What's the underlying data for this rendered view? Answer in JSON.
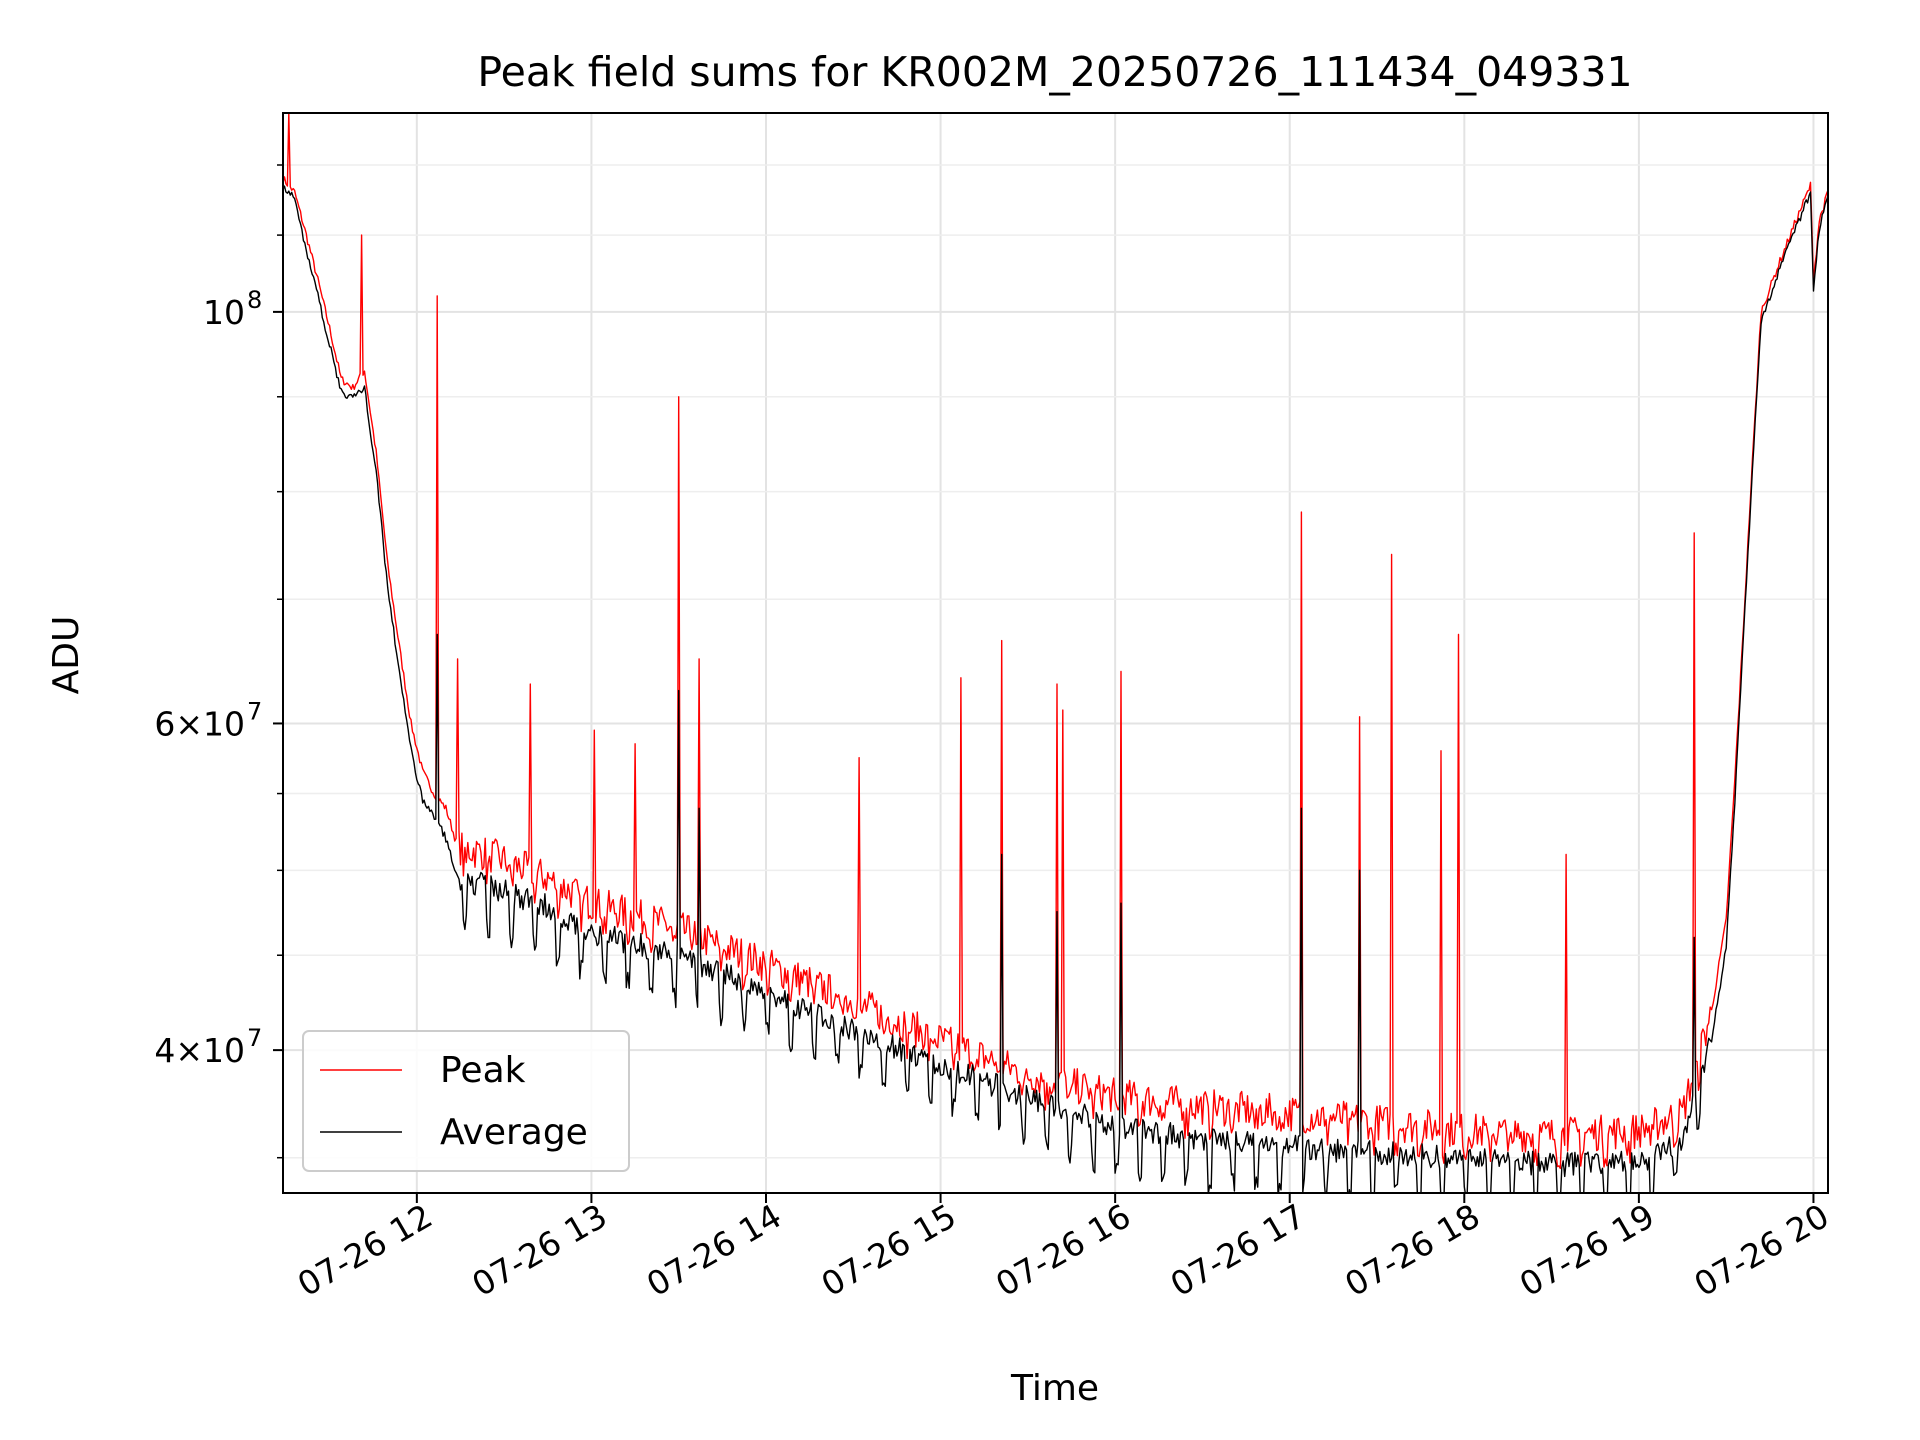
{
  "chart_data": {
    "type": "line",
    "title": "Peak field sums for KR002M_20250726_111434_049331",
    "xlabel": "Time",
    "ylabel": "ADU",
    "yscale": "log",
    "xlim": [
      "2025-07-26 11:14",
      "2025-07-26 20:05"
    ],
    "ylim": [
      33500000,
      128000000
    ],
    "x_ticks": [
      "07-26 12",
      "07-26 13",
      "07-26 14",
      "07-26 15",
      "07-26 16",
      "07-26 17",
      "07-26 18",
      "07-26 19",
      "07-26 20"
    ],
    "y_major_ticks": [
      {
        "value": 100000000,
        "mantissa": "",
        "base": "10",
        "exponent": "8"
      },
      {
        "value": 60000000,
        "mantissa": "6×",
        "base": "10",
        "exponent": "7"
      },
      {
        "value": 40000000,
        "mantissa": "4×",
        "base": "10",
        "exponent": "7"
      }
    ],
    "grid": true,
    "legend_position": "lower-left",
    "series": [
      {
        "name": "Peak",
        "color": "#ff0000",
        "points": [
          [
            "2025-07-26 11:14",
            118000000
          ],
          [
            "2025-07-26 11:18",
            116000000
          ],
          [
            "2025-07-26 11:22",
            110000000
          ],
          [
            "2025-07-26 11:26",
            104000000
          ],
          [
            "2025-07-26 11:30",
            98000000
          ],
          [
            "2025-07-26 11:34",
            92000000
          ],
          [
            "2025-07-26 11:38",
            91000000
          ],
          [
            "2025-07-26 11:42",
            93000000
          ],
          [
            "2025-07-26 11:46",
            84000000
          ],
          [
            "2025-07-26 11:50",
            73000000
          ],
          [
            "2025-07-26 11:54",
            66000000
          ],
          [
            "2025-07-26 11:58",
            60000000
          ],
          [
            "2025-07-26 12:02",
            56500000
          ],
          [
            "2025-07-26 12:06",
            55000000
          ],
          [
            "2025-07-26 12:10",
            54000000
          ],
          [
            "2025-07-26 12:14",
            51500000
          ],
          [
            "2025-07-26 12:25",
            51000000
          ],
          [
            "2025-07-26 12:45",
            49500000
          ],
          [
            "2025-07-26 13:00",
            48000000
          ],
          [
            "2025-07-26 13:30",
            46500000
          ],
          [
            "2025-07-26 14:00",
            44500000
          ],
          [
            "2025-07-26 14:30",
            42500000
          ],
          [
            "2025-07-26 15:00",
            40500000
          ],
          [
            "2025-07-26 15:30",
            38800000
          ],
          [
            "2025-07-26 16:00",
            37800000
          ],
          [
            "2025-07-26 16:30",
            37300000
          ],
          [
            "2025-07-26 17:00",
            37000000
          ],
          [
            "2025-07-26 17:30",
            36600000
          ],
          [
            "2025-07-26 18:00",
            36200000
          ],
          [
            "2025-07-26 18:30",
            36000000
          ],
          [
            "2025-07-26 19:00",
            36200000
          ],
          [
            "2025-07-26 19:15",
            37000000
          ],
          [
            "2025-07-26 19:25",
            42000000
          ],
          [
            "2025-07-26 19:30",
            47000000
          ],
          [
            "2025-07-26 19:33",
            56000000
          ],
          [
            "2025-07-26 19:36",
            68000000
          ],
          [
            "2025-07-26 19:39",
            83000000
          ],
          [
            "2025-07-26 19:42",
            100000000
          ],
          [
            "2025-07-26 19:48",
            106000000
          ],
          [
            "2025-07-26 19:54",
            112000000
          ],
          [
            "2025-07-26 19:59",
            117000000
          ],
          [
            "2025-07-26 20:00",
            104000000
          ],
          [
            "2025-07-26 20:02",
            112000000
          ],
          [
            "2025-07-26 20:05",
            116000000
          ]
        ],
        "spikes": [
          [
            "2025-07-26 11:16",
            128000000
          ],
          [
            "2025-07-26 11:41",
            110000000
          ],
          [
            "2025-07-26 12:07",
            102000000
          ],
          [
            "2025-07-26 12:14",
            65000000
          ],
          [
            "2025-07-26 12:39",
            63000000
          ],
          [
            "2025-07-26 13:01",
            59500000
          ],
          [
            "2025-07-26 13:15",
            58500000
          ],
          [
            "2025-07-26 13:30",
            90000000
          ],
          [
            "2025-07-26 13:37",
            65000000
          ],
          [
            "2025-07-26 14:32",
            57500000
          ],
          [
            "2025-07-26 15:07",
            63500000
          ],
          [
            "2025-07-26 15:21",
            66500000
          ],
          [
            "2025-07-26 15:40",
            63000000
          ],
          [
            "2025-07-26 15:42",
            61000000
          ],
          [
            "2025-07-26 16:02",
            64000000
          ],
          [
            "2025-07-26 17:04",
            78000000
          ],
          [
            "2025-07-26 17:24",
            60500000
          ],
          [
            "2025-07-26 17:35",
            74000000
          ],
          [
            "2025-07-26 17:52",
            58000000
          ],
          [
            "2025-07-26 17:58",
            67000000
          ],
          [
            "2025-07-26 18:35",
            51000000
          ],
          [
            "2025-07-26 19:19",
            76000000
          ]
        ]
      },
      {
        "name": "Average",
        "color": "#000000",
        "points": [
          [
            "2025-07-26 11:14",
            117000000
          ],
          [
            "2025-07-26 11:18",
            115000000
          ],
          [
            "2025-07-26 11:22",
            108000000
          ],
          [
            "2025-07-26 11:26",
            102000000
          ],
          [
            "2025-07-26 11:30",
            96000000
          ],
          [
            "2025-07-26 11:34",
            90500000
          ],
          [
            "2025-07-26 11:38",
            90000000
          ],
          [
            "2025-07-26 11:42",
            91000000
          ],
          [
            "2025-07-26 11:46",
            82000000
          ],
          [
            "2025-07-26 11:50",
            71000000
          ],
          [
            "2025-07-26 11:54",
            64000000
          ],
          [
            "2025-07-26 11:58",
            58000000
          ],
          [
            "2025-07-26 12:02",
            54500000
          ],
          [
            "2025-07-26 12:06",
            53500000
          ],
          [
            "2025-07-26 12:10",
            52000000
          ],
          [
            "2025-07-26 12:14",
            49500000
          ],
          [
            "2025-07-26 12:25",
            49000000
          ],
          [
            "2025-07-26 12:45",
            47800000
          ],
          [
            "2025-07-26 13:00",
            46300000
          ],
          [
            "2025-07-26 13:30",
            45000000
          ],
          [
            "2025-07-26 14:00",
            43000000
          ],
          [
            "2025-07-26 14:30",
            41000000
          ],
          [
            "2025-07-26 15:00",
            39300000
          ],
          [
            "2025-07-26 15:30",
            37700000
          ],
          [
            "2025-07-26 16:00",
            36400000
          ],
          [
            "2025-07-26 16:30",
            35800000
          ],
          [
            "2025-07-26 17:00",
            35500000
          ],
          [
            "2025-07-26 17:30",
            35200000
          ],
          [
            "2025-07-26 18:00",
            35000000
          ],
          [
            "2025-07-26 18:30",
            34700000
          ],
          [
            "2025-07-26 19:00",
            34800000
          ],
          [
            "2025-07-26 19:15",
            35800000
          ],
          [
            "2025-07-26 19:25",
            40500000
          ],
          [
            "2025-07-26 19:30",
            45500000
          ],
          [
            "2025-07-26 19:33",
            54500000
          ],
          [
            "2025-07-26 19:36",
            67000000
          ],
          [
            "2025-07-26 19:39",
            82000000
          ],
          [
            "2025-07-26 19:42",
            99000000
          ],
          [
            "2025-07-26 19:48",
            105000000
          ],
          [
            "2025-07-26 19:54",
            111000000
          ],
          [
            "2025-07-26 19:59",
            116000000
          ],
          [
            "2025-07-26 20:00",
            103000000
          ],
          [
            "2025-07-26 20:02",
            111000000
          ],
          [
            "2025-07-26 20:05",
            115500000
          ]
        ],
        "spikes": [
          [
            "2025-07-26 12:07",
            67000000
          ],
          [
            "2025-07-26 13:30",
            62500000
          ],
          [
            "2025-07-26 13:37",
            54000000
          ],
          [
            "2025-07-26 15:21",
            51000000
          ],
          [
            "2025-07-26 15:40",
            47500000
          ],
          [
            "2025-07-26 16:02",
            48000000
          ],
          [
            "2025-07-26 17:04",
            54000000
          ],
          [
            "2025-07-26 17:24",
            50000000
          ],
          [
            "2025-07-26 19:19",
            46000000
          ]
        ]
      }
    ]
  }
}
